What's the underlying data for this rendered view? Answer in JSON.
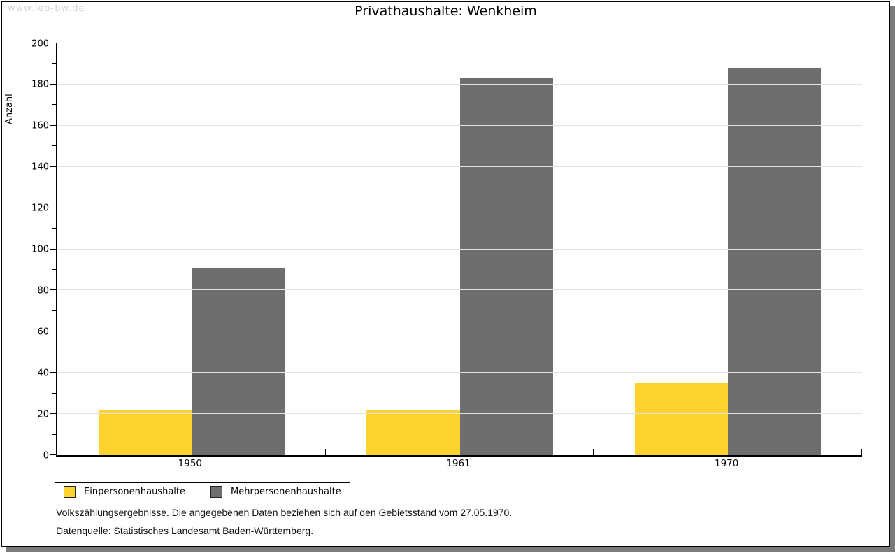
{
  "watermark": "www.leo-bw.de",
  "title": "Privathaushalte: Wenkheim",
  "chart_data": {
    "type": "bar",
    "title": "Privathaushalte: Wenkheim",
    "categories": [
      "1950",
      "1961",
      "1970"
    ],
    "series": [
      {
        "name": "Einpersonenhaushalte",
        "color": "#fcd32f",
        "values": [
          22,
          22,
          35
        ]
      },
      {
        "name": "Mehrpersonenhaushalte",
        "color": "#6e6e6e",
        "values": [
          91,
          183,
          188
        ]
      }
    ],
    "xlabel": "",
    "ylabel": "Anzahl",
    "ylim": [
      0,
      200
    ],
    "ytick_step": 20,
    "minor_tick_step": 10,
    "grid": "horizontal-major-lightgray",
    "legend_position": "bottom-left-boxed"
  },
  "footer": {
    "line1": "Volkszählungsergebnisse. Die angegebenen Daten beziehen sich auf den Gebietsstand vom 27.05.1970.",
    "line2": "Datenquelle: Statistisches Landesamt Baden-Württemberg."
  }
}
